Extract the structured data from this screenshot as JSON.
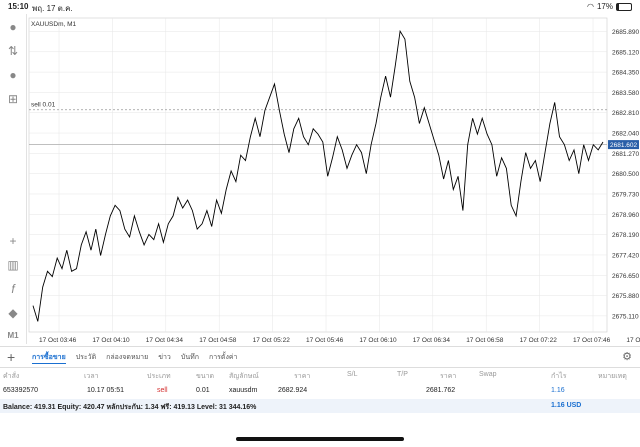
{
  "status": {
    "time": "15:10",
    "date": "พฤ. 17 ต.ค.",
    "battery": "17%",
    "battery_level": 0.17
  },
  "chart": {
    "symbol": "XAUUSDm, M1",
    "order_line_label": "sell 0.01",
    "order_price": 2682.924,
    "current_price_label": "2681.602",
    "current_price": 2681.602,
    "ymin": 2674.5,
    "ymax": 2686.4,
    "y_ticks": [
      "2685.890",
      "2685.120",
      "2684.350",
      "2683.580",
      "2682.810",
      "2682.040",
      "2681.270",
      "2680.500",
      "2679.730",
      "2678.960",
      "2678.190",
      "2677.420",
      "2676.650",
      "2675.880",
      "2675.110"
    ],
    "x_labels": [
      "17 Oct 03:46",
      "17 Oct 04:10",
      "17 Oct 04:34",
      "17 Oct 04:58",
      "17 Oct 05:22",
      "17 Oct 05:46",
      "17 Oct 06:10",
      "17 Oct 06:34",
      "17 Oct 06:58",
      "17 Oct 07:22",
      "17 Oct 07:46",
      "17 Oct 08:"
    ],
    "colors": {
      "line": "#000000",
      "price_tag": "#2a5fa8",
      "grid": "#e6e6e6"
    }
  },
  "chart_data": {
    "type": "line",
    "title": "XAUUSDm, M1",
    "ylim": [
      2674.5,
      2686.4
    ],
    "series": [
      {
        "name": "XAUUSDm",
        "values": [
          2675.5,
          2674.9,
          2676.2,
          2676.8,
          2676.6,
          2677.3,
          2676.9,
          2677.6,
          2676.8,
          2676.9,
          2677.8,
          2678.3,
          2677.6,
          2678.4,
          2677.4,
          2678.2,
          2678.9,
          2679.3,
          2679.1,
          2678.4,
          2678.1,
          2678.9,
          2678.3,
          2677.8,
          2678.2,
          2678.0,
          2678.6,
          2677.9,
          2678.6,
          2678.9,
          2679.6,
          2679.2,
          2679.5,
          2679.1,
          2678.4,
          2678.6,
          2679.1,
          2678.5,
          2679.5,
          2679.0,
          2679.9,
          2680.6,
          2680.2,
          2681.2,
          2681.0,
          2681.9,
          2682.6,
          2681.9,
          2682.9,
          2683.4,
          2683.9,
          2682.9,
          2682.0,
          2681.3,
          2682.2,
          2682.6,
          2681.9,
          2681.6,
          2682.2,
          2682.0,
          2681.7,
          2680.4,
          2681.1,
          2681.9,
          2681.4,
          2680.7,
          2681.2,
          2681.6,
          2681.3,
          2680.5,
          2681.6,
          2682.4,
          2683.4,
          2684.2,
          2683.4,
          2684.6,
          2685.9,
          2685.6,
          2684.0,
          2683.4,
          2682.4,
          2683.0,
          2682.4,
          2681.8,
          2681.2,
          2680.3,
          2681.0,
          2679.9,
          2680.4,
          2679.1,
          2681.6,
          2682.6,
          2682.0,
          2682.6,
          2682.0,
          2681.6,
          2680.4,
          2681.1,
          2680.7,
          2679.3,
          2678.9,
          2680.2,
          2681.3,
          2680.7,
          2681.0,
          2680.2,
          2681.3,
          2682.4,
          2683.2,
          2681.9,
          2681.6,
          2681.0,
          2681.4,
          2680.5,
          2681.6,
          2681.0,
          2681.6,
          2681.4,
          2681.7
        ]
      }
    ]
  },
  "side_icons": [
    "user-icon",
    "trade-icon",
    "chat-icon",
    "new-order-icon",
    "crosshair-icon",
    "indicators-icon",
    "function-icon",
    "objects-icon"
  ],
  "timeframe": "M1",
  "tabs": [
    "การซื้อขาย",
    "ประวัติ",
    "กล่องจดหมาย",
    "ข่าว",
    "บันทึก",
    "การตั้งค่า"
  ],
  "table": {
    "headers": [
      "คำสั่ง",
      "เวลา",
      "ประเภท",
      "ขนาด",
      "สัญลักษณ์",
      "ราคา",
      "S/L",
      "T/P",
      "ราคา",
      "Swap",
      "กำไร",
      "หมายเหตุ"
    ],
    "row": {
      "order": "653392570",
      "time": "10.17 05:51",
      "type": "sell",
      "volume": "0.01",
      "symbol": "xauusdm",
      "price": "2682.924",
      "sl": "",
      "tp": "",
      "current": "2681.762",
      "swap": "",
      "profit": "1.16",
      "comment": ""
    }
  },
  "balance": {
    "text": "Balance: 419.31 Equity: 420.47 หลักประกัน: 1.34 ฟรี: 419.13 Level: 31 344.16%",
    "profit": "1.16 USD"
  }
}
